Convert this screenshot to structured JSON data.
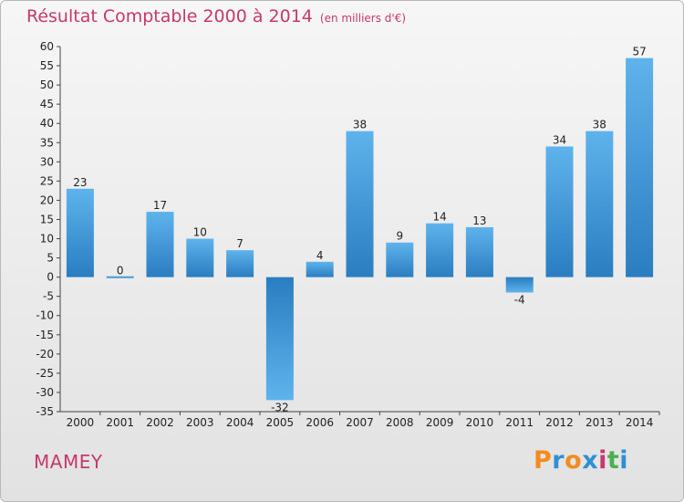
{
  "header": {
    "title": "Résultat Comptable 2000 à 2014",
    "subtitle": "(en milliers d'€)"
  },
  "footer": {
    "commune": "MAMEY",
    "brand": "Proxiti",
    "brand_colors": [
      "#f28c1e",
      "#2f8fd6",
      "#f28c1e",
      "#2f8fd6",
      "#c8376d",
      "#4caf50",
      "#2f8fd6"
    ]
  },
  "chart_data": {
    "type": "bar",
    "title": "Résultat Comptable 2000 à 2014",
    "subtitle": "(en milliers d'€)",
    "xlabel": "",
    "ylabel": "",
    "categories": [
      "2000",
      "2001",
      "2002",
      "2003",
      "2004",
      "2005",
      "2006",
      "2007",
      "2008",
      "2009",
      "2010",
      "2011",
      "2012",
      "2013",
      "2014"
    ],
    "values": [
      23,
      0,
      17,
      10,
      7,
      -32,
      4,
      38,
      9,
      14,
      13,
      -4,
      34,
      38,
      57
    ],
    "ylim": [
      -35,
      60
    ],
    "yticks": [
      60,
      55,
      50,
      45,
      40,
      35,
      30,
      25,
      20,
      15,
      10,
      5,
      0,
      -5,
      -10,
      -15,
      -20,
      -25,
      -30,
      -35
    ],
    "grid": false,
    "bar_color_light": "#5fb3ec",
    "bar_color_dark": "#2a7dc0"
  }
}
